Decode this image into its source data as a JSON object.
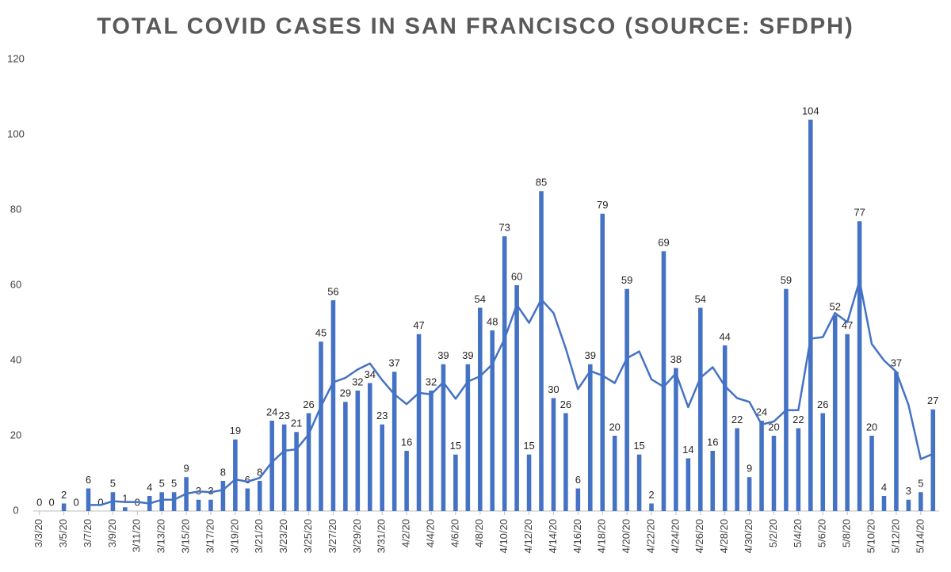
{
  "chart_data": {
    "type": "bar",
    "title": "TOTAL COVID CASES IN SAN FRANCISCO (SOURCE: SFDPH)",
    "categories": [
      "3/3/20",
      null,
      "3/5/20",
      null,
      "3/7/20",
      null,
      "3/9/20",
      null,
      "3/11/20",
      null,
      "3/13/20",
      null,
      "3/15/20",
      null,
      "3/17/20",
      null,
      "3/19/20",
      null,
      "3/21/20",
      null,
      "3/23/20",
      null,
      "3/25/20",
      null,
      "3/27/20",
      null,
      "3/29/20",
      null,
      "3/31/20",
      null,
      "4/2/20",
      null,
      "4/4/20",
      null,
      "4/6/20",
      null,
      "4/8/20",
      null,
      "4/10/20",
      null,
      "4/12/20",
      null,
      "4/14/20",
      null,
      "4/16/20",
      null,
      "4/18/20",
      null,
      "4/20/20",
      null,
      "4/22/20",
      null,
      "4/24/20",
      null,
      "4/26/20",
      null,
      "4/28/20",
      null,
      "4/30/20",
      null,
      "5/2/20",
      null,
      "5/4/20",
      null,
      "5/6/20",
      null,
      "5/8/20",
      null,
      "5/10/20",
      null,
      "5/12/20",
      null,
      "5/14/20",
      null
    ],
    "series": [
      {
        "type": "bar",
        "color": "#4472c4",
        "values": [
          0,
          0,
          2,
          0,
          6,
          0,
          5,
          1,
          0,
          4,
          5,
          5,
          9,
          3,
          3,
          8,
          19,
          6,
          8,
          24,
          23,
          21,
          26,
          45,
          56,
          29,
          32,
          34,
          23,
          37,
          16,
          47,
          32,
          39,
          15,
          39,
          54,
          48,
          73,
          60,
          15,
          85,
          30,
          26,
          6,
          39,
          79,
          20,
          59,
          15,
          2,
          69,
          38,
          14,
          54,
          16,
          44,
          22,
          9,
          24,
          20,
          59,
          22,
          104,
          26,
          52,
          47,
          77,
          20,
          4,
          37,
          3,
          5,
          27
        ]
      },
      {
        "type": "line",
        "color": "#4472c4",
        "values": [
          null,
          null,
          null,
          null,
          1.6,
          1.6,
          2.6,
          2.4,
          2.4,
          2,
          3,
          3,
          4.6,
          5.2,
          5,
          5.6,
          8.4,
          7.8,
          8.8,
          13,
          16,
          16.4,
          20.4,
          27.8,
          34.2,
          35.4,
          37.6,
          39.2,
          34.8,
          31,
          28.4,
          31.4,
          31,
          34.2,
          29.8,
          34.4,
          35.8,
          39,
          45.8,
          54.8,
          50,
          56.2,
          52.6,
          43.2,
          32.4,
          37.2,
          36,
          34,
          40.6,
          42.4,
          35,
          33,
          36.6,
          27.6,
          35.4,
          38.2,
          33.2,
          30,
          29,
          23,
          23.8,
          26.8,
          26.8,
          45.8,
          46.2,
          52.6,
          50.2,
          61.2,
          44.4,
          40,
          37,
          28.2,
          13.8,
          15.2
        ]
      }
    ],
    "ylim": [
      0,
      120
    ],
    "yticks": [
      0,
      20,
      40,
      60,
      80,
      100,
      120
    ],
    "grid": false
  }
}
